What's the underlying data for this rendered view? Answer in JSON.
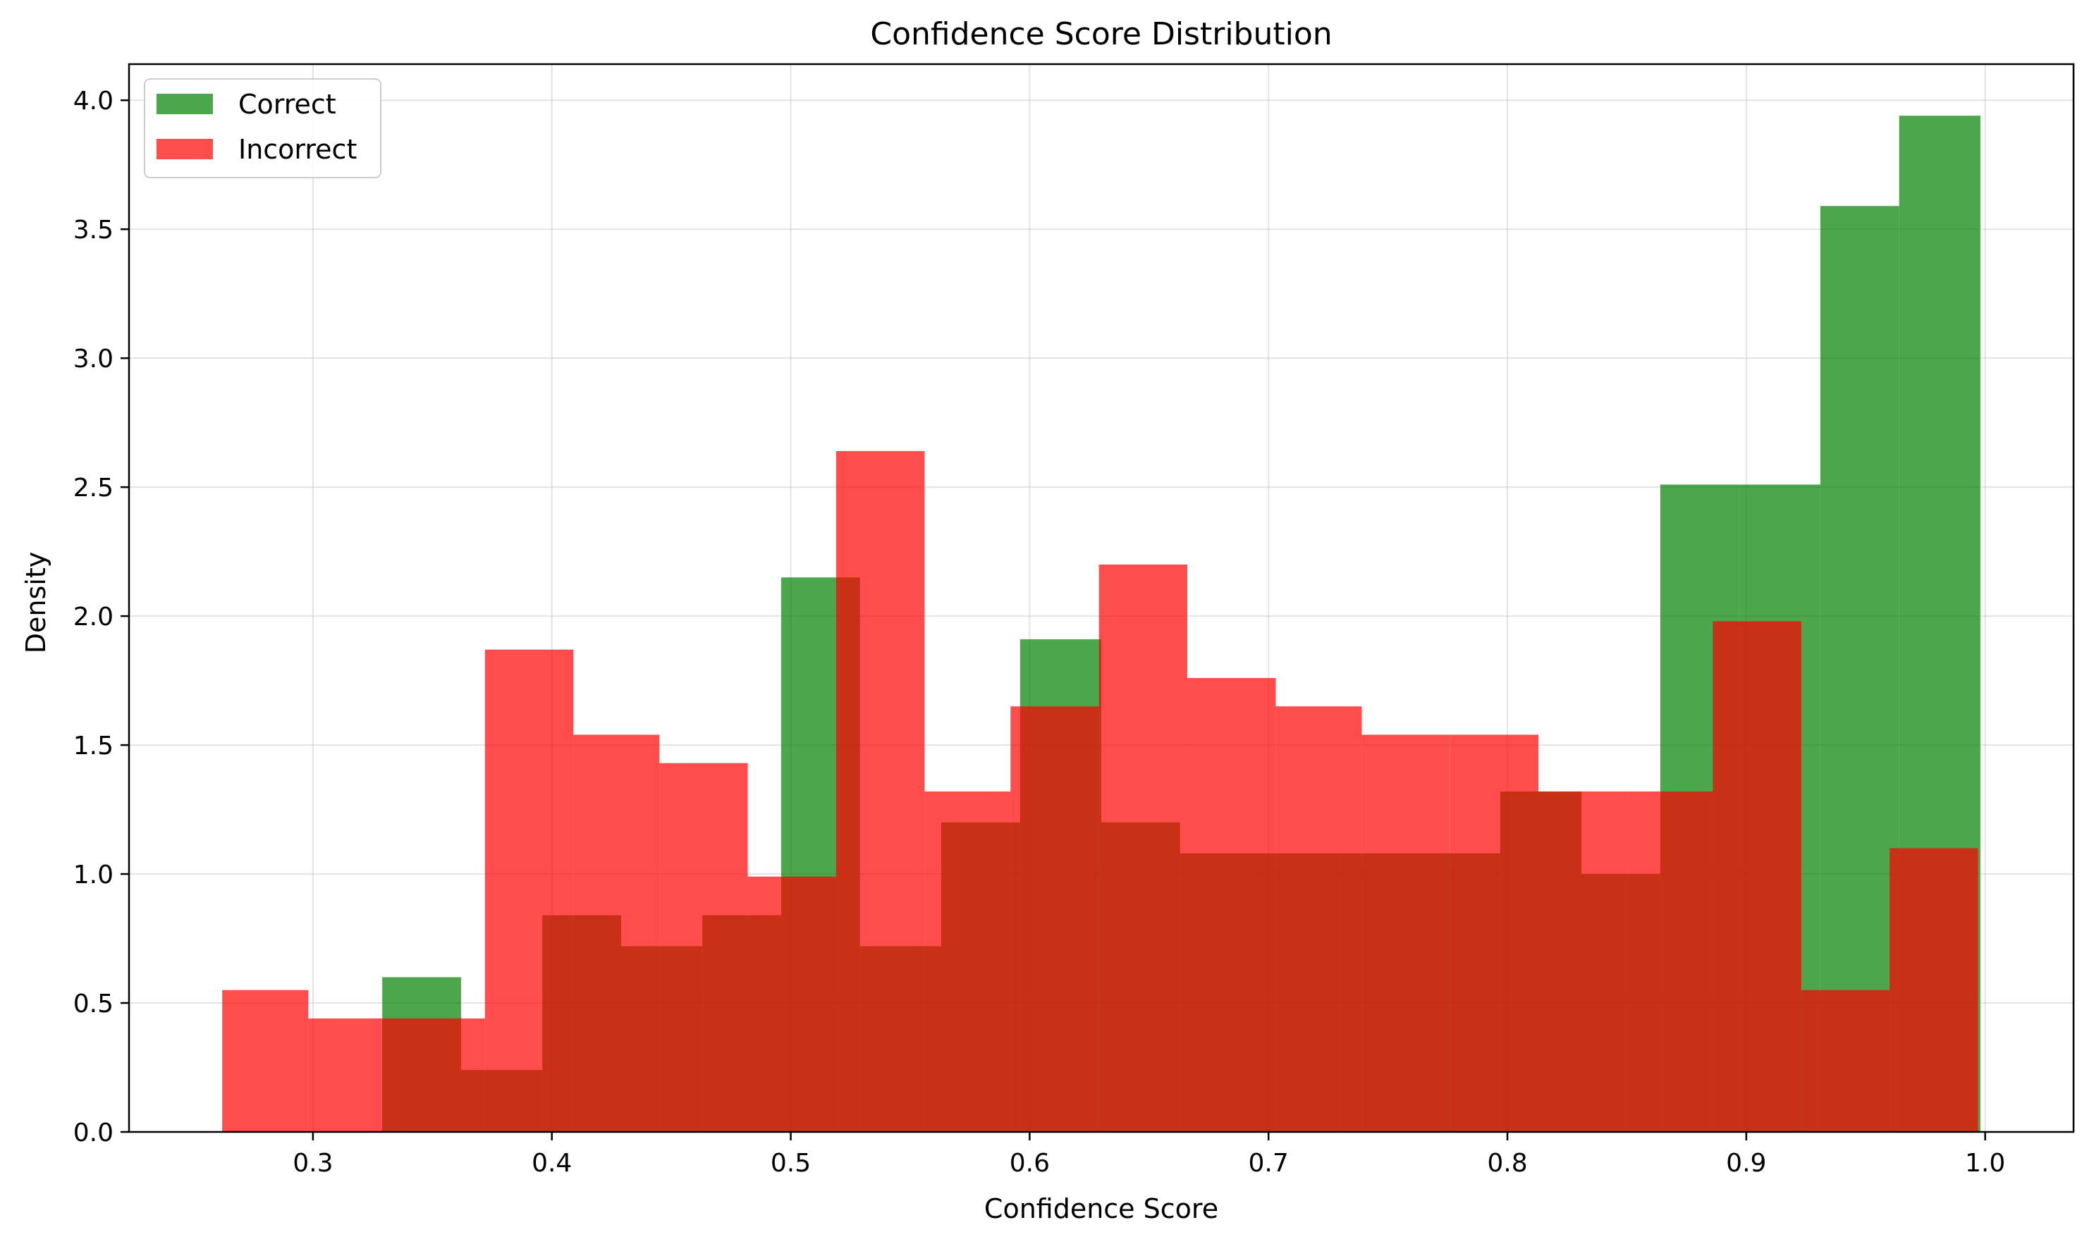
{
  "chart_data": {
    "type": "histogram",
    "title": "Confidence Score Distribution",
    "xlabel": "Confidence Score",
    "ylabel": "Density",
    "xlim": [
      0.223,
      1.037
    ],
    "ylim": [
      0.0,
      4.14
    ],
    "xticks": [
      "0.3",
      "0.4",
      "0.5",
      "0.6",
      "0.7",
      "0.8",
      "0.9",
      "1.0"
    ],
    "yticks": [
      "0.0",
      "0.5",
      "1.0",
      "1.5",
      "2.0",
      "2.5",
      "3.0",
      "3.5",
      "4.0"
    ],
    "grid": true,
    "legend_position": "upper-left",
    "series": [
      {
        "name": "Correct",
        "color": "#008000",
        "alpha": 0.7,
        "bins": [
          {
            "x0": 0.329,
            "x1": 0.362,
            "density": 0.6
          },
          {
            "x0": 0.362,
            "x1": 0.396,
            "density": 0.24
          },
          {
            "x0": 0.396,
            "x1": 0.429,
            "density": 0.84
          },
          {
            "x0": 0.429,
            "x1": 0.463,
            "density": 0.72
          },
          {
            "x0": 0.463,
            "x1": 0.496,
            "density": 0.84
          },
          {
            "x0": 0.496,
            "x1": 0.529,
            "density": 2.15
          },
          {
            "x0": 0.529,
            "x1": 0.563,
            "density": 0.72
          },
          {
            "x0": 0.563,
            "x1": 0.596,
            "density": 1.2
          },
          {
            "x0": 0.596,
            "x1": 0.63,
            "density": 1.91
          },
          {
            "x0": 0.63,
            "x1": 0.663,
            "density": 1.2
          },
          {
            "x0": 0.663,
            "x1": 0.697,
            "density": 1.08
          },
          {
            "x0": 0.697,
            "x1": 0.73,
            "density": 1.08
          },
          {
            "x0": 0.73,
            "x1": 0.764,
            "density": 1.08
          },
          {
            "x0": 0.764,
            "x1": 0.797,
            "density": 1.08
          },
          {
            "x0": 0.797,
            "x1": 0.831,
            "density": 1.32
          },
          {
            "x0": 0.831,
            "x1": 0.864,
            "density": 1.0
          },
          {
            "x0": 0.864,
            "x1": 0.897,
            "density": 2.51
          },
          {
            "x0": 0.897,
            "x1": 0.931,
            "density": 2.51
          },
          {
            "x0": 0.931,
            "x1": 0.964,
            "density": 3.59
          },
          {
            "x0": 0.964,
            "x1": 0.998,
            "density": 3.94
          }
        ]
      },
      {
        "name": "Incorrect",
        "color": "#ff0000",
        "alpha": 0.7,
        "bins": [
          {
            "x0": 0.262,
            "x1": 0.298,
            "density": 0.55
          },
          {
            "x0": 0.298,
            "x1": 0.335,
            "density": 0.44
          },
          {
            "x0": 0.335,
            "x1": 0.372,
            "density": 0.44
          },
          {
            "x0": 0.372,
            "x1": 0.409,
            "density": 1.87
          },
          {
            "x0": 0.409,
            "x1": 0.445,
            "density": 1.54
          },
          {
            "x0": 0.445,
            "x1": 0.482,
            "density": 1.43
          },
          {
            "x0": 0.482,
            "x1": 0.519,
            "density": 0.99
          },
          {
            "x0": 0.519,
            "x1": 0.556,
            "density": 2.64
          },
          {
            "x0": 0.556,
            "x1": 0.592,
            "density": 1.32
          },
          {
            "x0": 0.592,
            "x1": 0.629,
            "density": 1.65
          },
          {
            "x0": 0.629,
            "x1": 0.666,
            "density": 2.2
          },
          {
            "x0": 0.666,
            "x1": 0.703,
            "density": 1.76
          },
          {
            "x0": 0.703,
            "x1": 0.739,
            "density": 1.65
          },
          {
            "x0": 0.739,
            "x1": 0.776,
            "density": 1.54
          },
          {
            "x0": 0.776,
            "x1": 0.813,
            "density": 1.54
          },
          {
            "x0": 0.813,
            "x1": 0.85,
            "density": 1.32
          },
          {
            "x0": 0.85,
            "x1": 0.886,
            "density": 1.32
          },
          {
            "x0": 0.886,
            "x1": 0.923,
            "density": 1.98
          },
          {
            "x0": 0.923,
            "x1": 0.96,
            "density": 0.55
          },
          {
            "x0": 0.96,
            "x1": 0.997,
            "density": 1.1
          }
        ]
      }
    ]
  }
}
